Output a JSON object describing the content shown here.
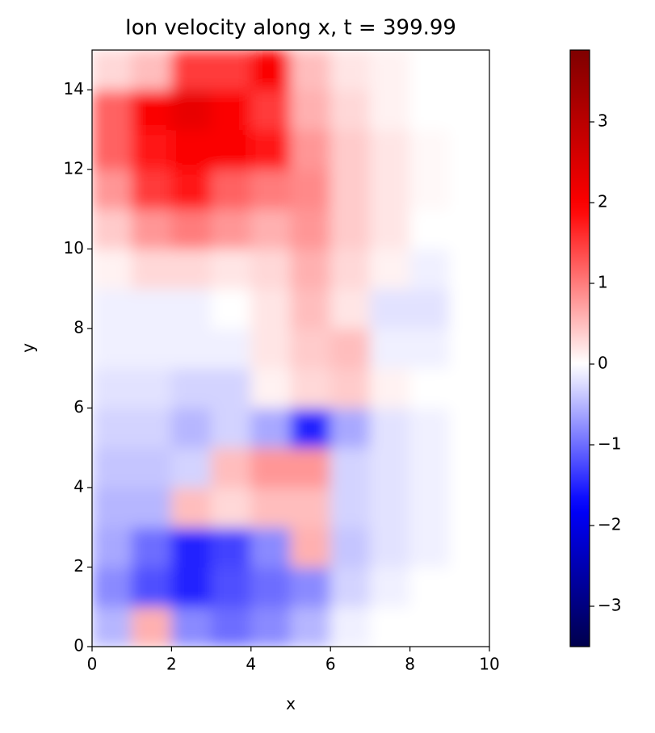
{
  "chart_data": {
    "type": "heatmap",
    "title": "Ion velocity along x, t = 399.99",
    "x_label": "x",
    "y_label": "y",
    "xlim": [
      0,
      10
    ],
    "ylim": [
      0,
      15
    ],
    "xticks": [
      0,
      2,
      4,
      6,
      8,
      10
    ],
    "yticks": [
      0,
      2,
      4,
      6,
      8,
      10,
      12,
      14
    ],
    "vlim": [
      -3.5,
      3.89
    ],
    "colorbar_ticks": [
      {
        "value": -3,
        "label": "−3"
      },
      {
        "value": -2,
        "label": "−2"
      },
      {
        "value": -1,
        "label": "−1"
      },
      0,
      1,
      2,
      3
    ],
    "colormap": [
      "#00004c",
      "#0000ff",
      "#ffffff",
      "#ff0000",
      "#7f0000"
    ],
    "values": [
      [
        -0.5,
        0.6,
        -0.8,
        -1,
        -0.8,
        -0.5,
        -0.1,
        0,
        0,
        0
      ],
      [
        -0.8,
        -1.2,
        -1.5,
        -1.2,
        -1,
        -0.8,
        -0.3,
        -0.1,
        0,
        0
      ],
      [
        -0.6,
        -1,
        -1.5,
        -1.3,
        -0.8,
        0.6,
        -0.4,
        -0.2,
        -0.1,
        0
      ],
      [
        -0.5,
        -0.5,
        0.5,
        0.3,
        0.5,
        0.5,
        -0.3,
        -0.2,
        -0.1,
        0
      ],
      [
        -0.4,
        -0.4,
        -0.3,
        0.5,
        0.8,
        0.8,
        -0.3,
        -0.2,
        -0.1,
        0
      ],
      [
        -0.3,
        -0.3,
        -0.5,
        -0.3,
        -0.6,
        -1.5,
        -0.6,
        -0.2,
        -0.1,
        0
      ],
      [
        -0.2,
        -0.2,
        -0.3,
        -0.3,
        0.1,
        0.3,
        0.4,
        0.1,
        0,
        0
      ],
      [
        -0.1,
        -0.1,
        -0.1,
        -0.1,
        0.2,
        0.4,
        0.5,
        -0.1,
        -0.1,
        0
      ],
      [
        -0.1,
        -0.1,
        -0.1,
        0,
        0.2,
        0.5,
        0.2,
        -0.2,
        -0.2,
        0
      ],
      [
        0.1,
        0.3,
        0.3,
        0.2,
        0.3,
        0.6,
        0.3,
        0.1,
        -0.1,
        0
      ],
      [
        0.4,
        0.8,
        1,
        0.8,
        0.6,
        0.8,
        0.4,
        0.2,
        0,
        0
      ],
      [
        0.8,
        1.5,
        1.8,
        1.2,
        1,
        0.9,
        0.4,
        0.2,
        0.05,
        0
      ],
      [
        1.2,
        1.8,
        2,
        2,
        1.8,
        0.8,
        0.4,
        0.2,
        0.05,
        0
      ],
      [
        1.2,
        2,
        2.3,
        2,
        1.5,
        0.6,
        0.3,
        0.1,
        0,
        0
      ],
      [
        0.3,
        0.5,
        1.5,
        1.5,
        2,
        0.5,
        0.2,
        0.1,
        0,
        0
      ]
    ]
  }
}
